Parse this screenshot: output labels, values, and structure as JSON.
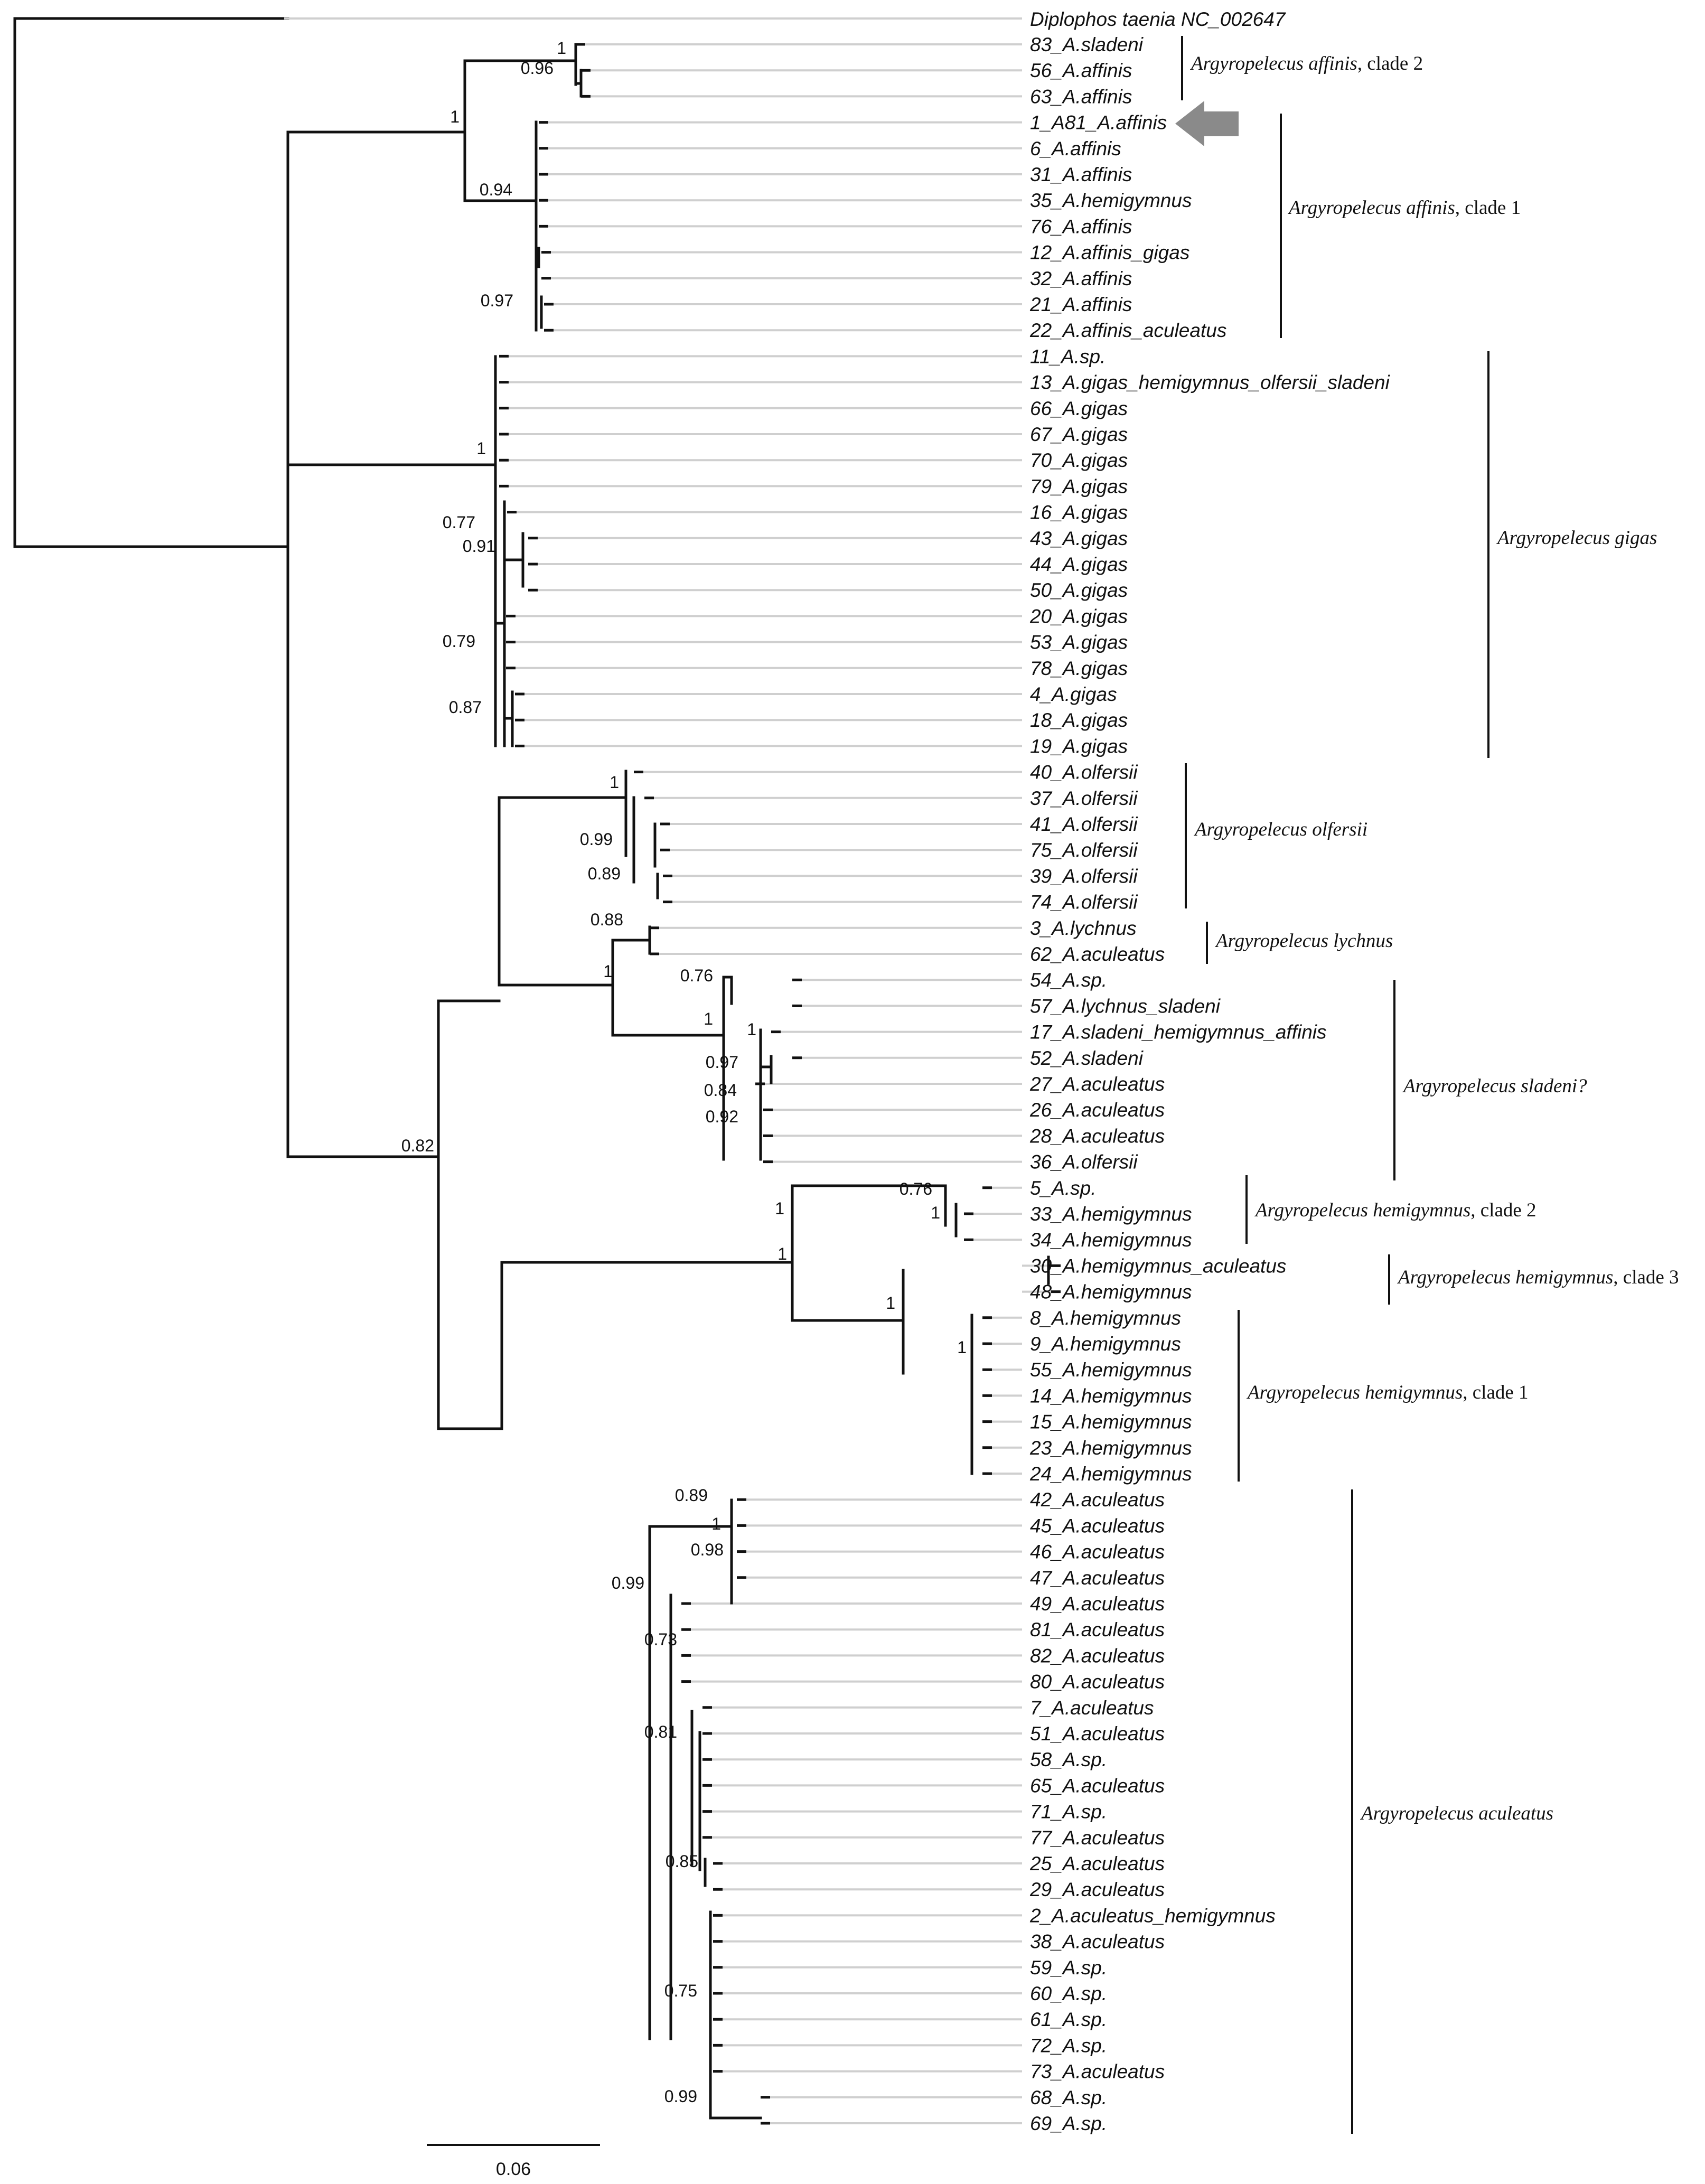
{
  "outgroup": {
    "name": "Diplophos taenia",
    "accession": "NC_002647",
    "label": "Diplophos taenia  NC_002647"
  },
  "tips": [
    "83_A.sladeni",
    "56_A.affinis",
    "63_A.affinis",
    "1_A81_A.affinis",
    "6_A.affinis",
    "31_A.affinis",
    "35_A.hemigymnus",
    "76_A.affinis",
    "12_A.affinis_gigas",
    "32_A.affinis",
    "21_A.affinis",
    "22_A.affinis_aculeatus",
    "11_A.sp.",
    "13_A.gigas_hemigymnus_olfersii_sladeni",
    "66_A.gigas",
    "67_A.gigas",
    "70_A.gigas",
    "79_A.gigas",
    "16_A.gigas",
    "43_A.gigas",
    "44_A.gigas",
    "50_A.gigas",
    "20_A.gigas",
    "53_A.gigas",
    "78_A.gigas",
    "4_A.gigas",
    "18_A.gigas",
    "19_A.gigas",
    "40_A.olfersii",
    "37_A.olfersii",
    "41_A.olfersii",
    "75_A.olfersii",
    "39_A.olfersii",
    "74_A.olfersii",
    "3_A.lychnus",
    "62_A.aculeatus",
    "54_A.sp.",
    "57_A.lychnus_sladeni",
    "17_A.sladeni_hemigymnus_affinis",
    "52_A.sladeni",
    "27_A.aculeatus",
    "26_A.aculeatus",
    "28_A.aculeatus",
    "36_A.olfersii",
    "5_A.sp.",
    "33_A.hemigymnus",
    "34_A.hemigymnus",
    "30_A.hemigymnus_aculeatus",
    "48_A.hemigymnus",
    "8_A.hemigymnus",
    "9_A.hemigymnus",
    "55_A.hemigymnus",
    "14_A.hemigymnus",
    "15_A.hemigymnus",
    "23_A.hemigymnus",
    "24_A.hemigymnus",
    "42_A.aculeatus",
    "45_A.aculeatus",
    "46_A.aculeatus",
    "47_A.aculeatus",
    "49_A.aculeatus",
    "81_A.aculeatus",
    "82_A.aculeatus",
    "80_A.aculeatus",
    "7_A.aculeatus",
    "51_A.aculeatus",
    "58_A.sp.",
    "65_A.aculeatus",
    "71_A.sp.",
    "77_A.aculeatus",
    "25_A.aculeatus",
    "29_A.aculeatus",
    "2_A.aculeatus_hemigymnus",
    "38_A.aculeatus",
    "59_A.sp.",
    "60_A.sp.",
    "61_A.sp.",
    "72_A.sp.",
    "73_A.aculeatus",
    "68_A.sp.",
    "69_A.sp."
  ],
  "support_values": [
    "1",
    "0.96",
    "1",
    "0.94",
    "0.97",
    "1",
    "0.77",
    "0.91",
    "0.79",
    "0.87",
    "1",
    "0.99",
    "0.89",
    "0.88",
    "1",
    "0.76",
    "1",
    "1",
    "0.97",
    "0.84",
    "0.92",
    "0.82",
    "1",
    "1",
    "0.76",
    "1",
    "1",
    "1",
    "0.89",
    "1",
    "0.98",
    "0.99",
    "0.73",
    "0.81",
    "0.85",
    "0.75",
    "0.99"
  ],
  "clades": [
    {
      "species": "Argyropelecus affinis",
      "suffix": ", clade 2"
    },
    {
      "species": "Argyropelecus affinis",
      "suffix": ", clade 1"
    },
    {
      "species": "Argyropelecus gigas",
      "suffix": ""
    },
    {
      "species": "Argyropelecus olfersii",
      "suffix": ""
    },
    {
      "species": "Argyropelecus lychnus",
      "suffix": ""
    },
    {
      "species": "Argyropelecus sladeni?",
      "suffix": ""
    },
    {
      "species": "Argyropelecus hemigymnus",
      "suffix": ", clade 2"
    },
    {
      "species": "Argyropelecus hemigymnus",
      "suffix": ", clade 3"
    },
    {
      "species": "Argyropelecus hemigymnus",
      "suffix": ", clade 1"
    },
    {
      "species": "Argyropelecus aculeatus",
      "suffix": ""
    }
  ],
  "highlight_arrow": {
    "target": "1_A81_A.affinis",
    "icon": "left-arrow-icon"
  },
  "scale_bar": {
    "value": "0.06"
  },
  "colors": {
    "branch": "#111111",
    "guide": "#cfcfcf",
    "arrow": "#8a8a8a"
  }
}
